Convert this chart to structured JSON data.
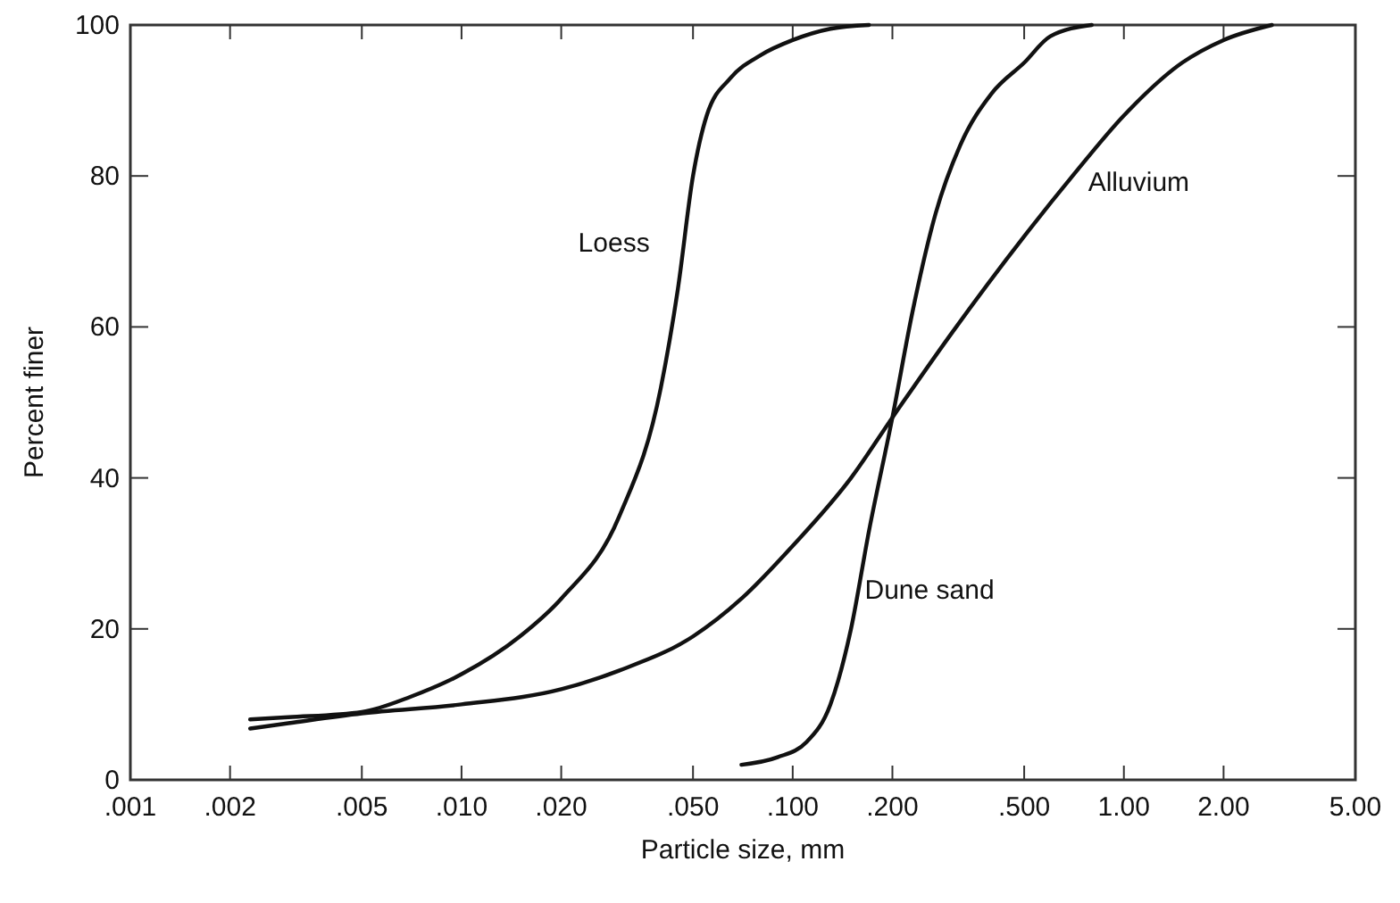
{
  "chart_data": {
    "type": "line",
    "xlabel": "Particle size, mm",
    "ylabel": "Percent finer",
    "log": "x",
    "grid": false,
    "marker": "none",
    "line_style": "solid",
    "xlim": [
      0.001,
      5
    ],
    "ylim": [
      0,
      100
    ],
    "xticks": [
      {
        "value": 0.001,
        "label": ".001"
      },
      {
        "value": 0.002,
        "label": ".002"
      },
      {
        "value": 0.005,
        "label": ".005"
      },
      {
        "value": 0.01,
        "label": ".010"
      },
      {
        "value": 0.02,
        "label": ".020"
      },
      {
        "value": 0.05,
        "label": ".050"
      },
      {
        "value": 0.1,
        "label": ".100"
      },
      {
        "value": 0.2,
        "label": ".200"
      },
      {
        "value": 0.5,
        "label": ".500"
      },
      {
        "value": 1,
        "label": "1.00"
      },
      {
        "value": 2,
        "label": "2.00"
      },
      {
        "value": 5,
        "label": "5.00"
      }
    ],
    "yticks": [
      0,
      20,
      40,
      60,
      80,
      100
    ],
    "series": [
      {
        "name": "Loess",
        "color": "#111111",
        "x": [
          0.0023,
          0.003,
          0.005,
          0.007,
          0.01,
          0.015,
          0.02,
          0.03,
          0.04,
          0.045,
          0.05,
          0.055,
          0.065,
          0.08,
          0.1,
          0.13,
          0.17
        ],
        "values": [
          8,
          8.3,
          9,
          11,
          14,
          19,
          24,
          35,
          52,
          65,
          80,
          88,
          93,
          96,
          98,
          99.5,
          100
        ]
      },
      {
        "name": "Alluvium",
        "color": "#111111",
        "x": [
          0.0023,
          0.003,
          0.005,
          0.01,
          0.02,
          0.03,
          0.05,
          0.07,
          0.1,
          0.15,
          0.2,
          0.3,
          0.5,
          0.7,
          1,
          1.5,
          2,
          2.8
        ],
        "values": [
          6.8,
          7.5,
          8.8,
          10,
          12,
          14.5,
          19,
          24,
          31,
          40,
          48,
          59,
          72,
          80,
          88,
          95,
          98,
          100
        ]
      },
      {
        "name": "Dune sand",
        "color": "#111111",
        "x": [
          0.07,
          0.09,
          0.11,
          0.13,
          0.15,
          0.17,
          0.2,
          0.23,
          0.27,
          0.32,
          0.4,
          0.5,
          0.6,
          0.8
        ],
        "values": [
          2,
          3,
          5,
          10,
          20,
          33,
          48,
          62,
          75,
          84,
          91,
          95,
          98.5,
          100
        ]
      }
    ]
  }
}
